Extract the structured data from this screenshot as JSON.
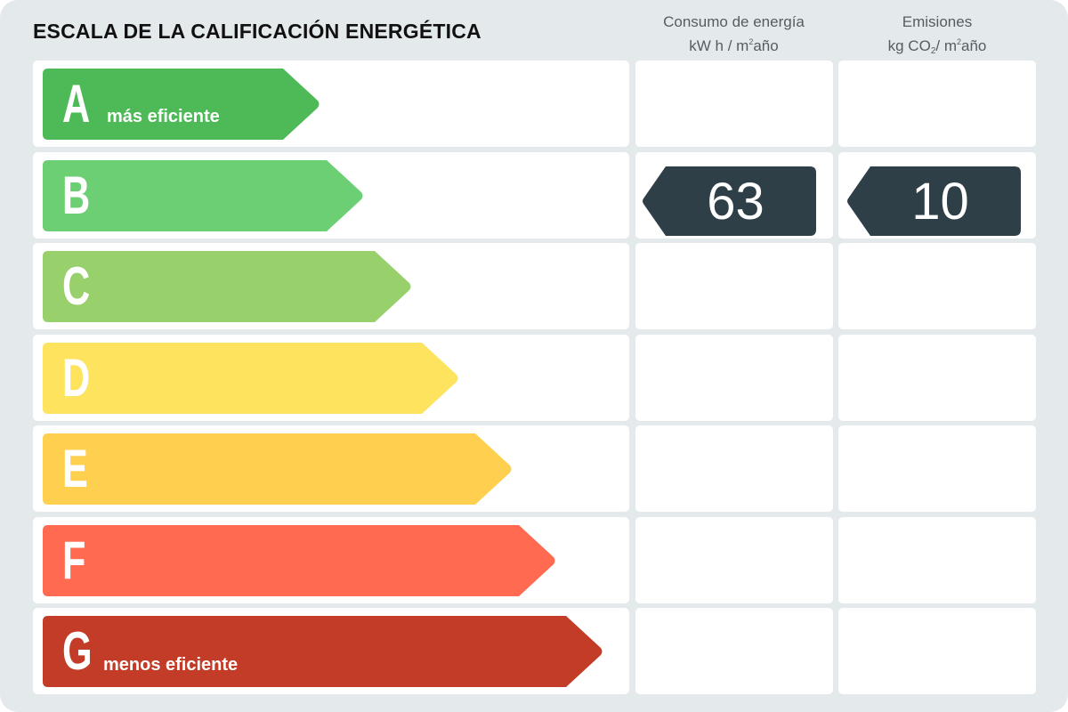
{
  "title": "ESCALA DE LA CALIFICACIÓN ENERGÉTICA",
  "columns": {
    "energy": {
      "line1": "Consumo de energía",
      "line2_prefix": "kW h / m",
      "sup": "2",
      "line2_suffix": "año"
    },
    "emissions": {
      "line1": "Emisiones",
      "line2_prefix": "kg CO",
      "sub": "2",
      "mid": "/ m",
      "sup": "2",
      "line2_suffix": "año"
    }
  },
  "rating": {
    "energy_value": "63",
    "emissions_value": "10",
    "energy_class": "B",
    "emissions_class": "B"
  },
  "classes": [
    {
      "letter": "A",
      "label": "más eficiente",
      "color": "#4dba57"
    },
    {
      "letter": "B",
      "label": "",
      "color": "#6dcf74"
    },
    {
      "letter": "C",
      "label": "",
      "color": "#98d16c"
    },
    {
      "letter": "D",
      "label": "",
      "color": "#fee35f"
    },
    {
      "letter": "E",
      "label": "",
      "color": "#ffd04f"
    },
    {
      "letter": "F",
      "label": "",
      "color": "#ff6a50"
    },
    {
      "letter": "G",
      "label": "menos eficiente",
      "color": "#c23c27"
    }
  ],
  "indicator_color": "#2e3f48"
}
